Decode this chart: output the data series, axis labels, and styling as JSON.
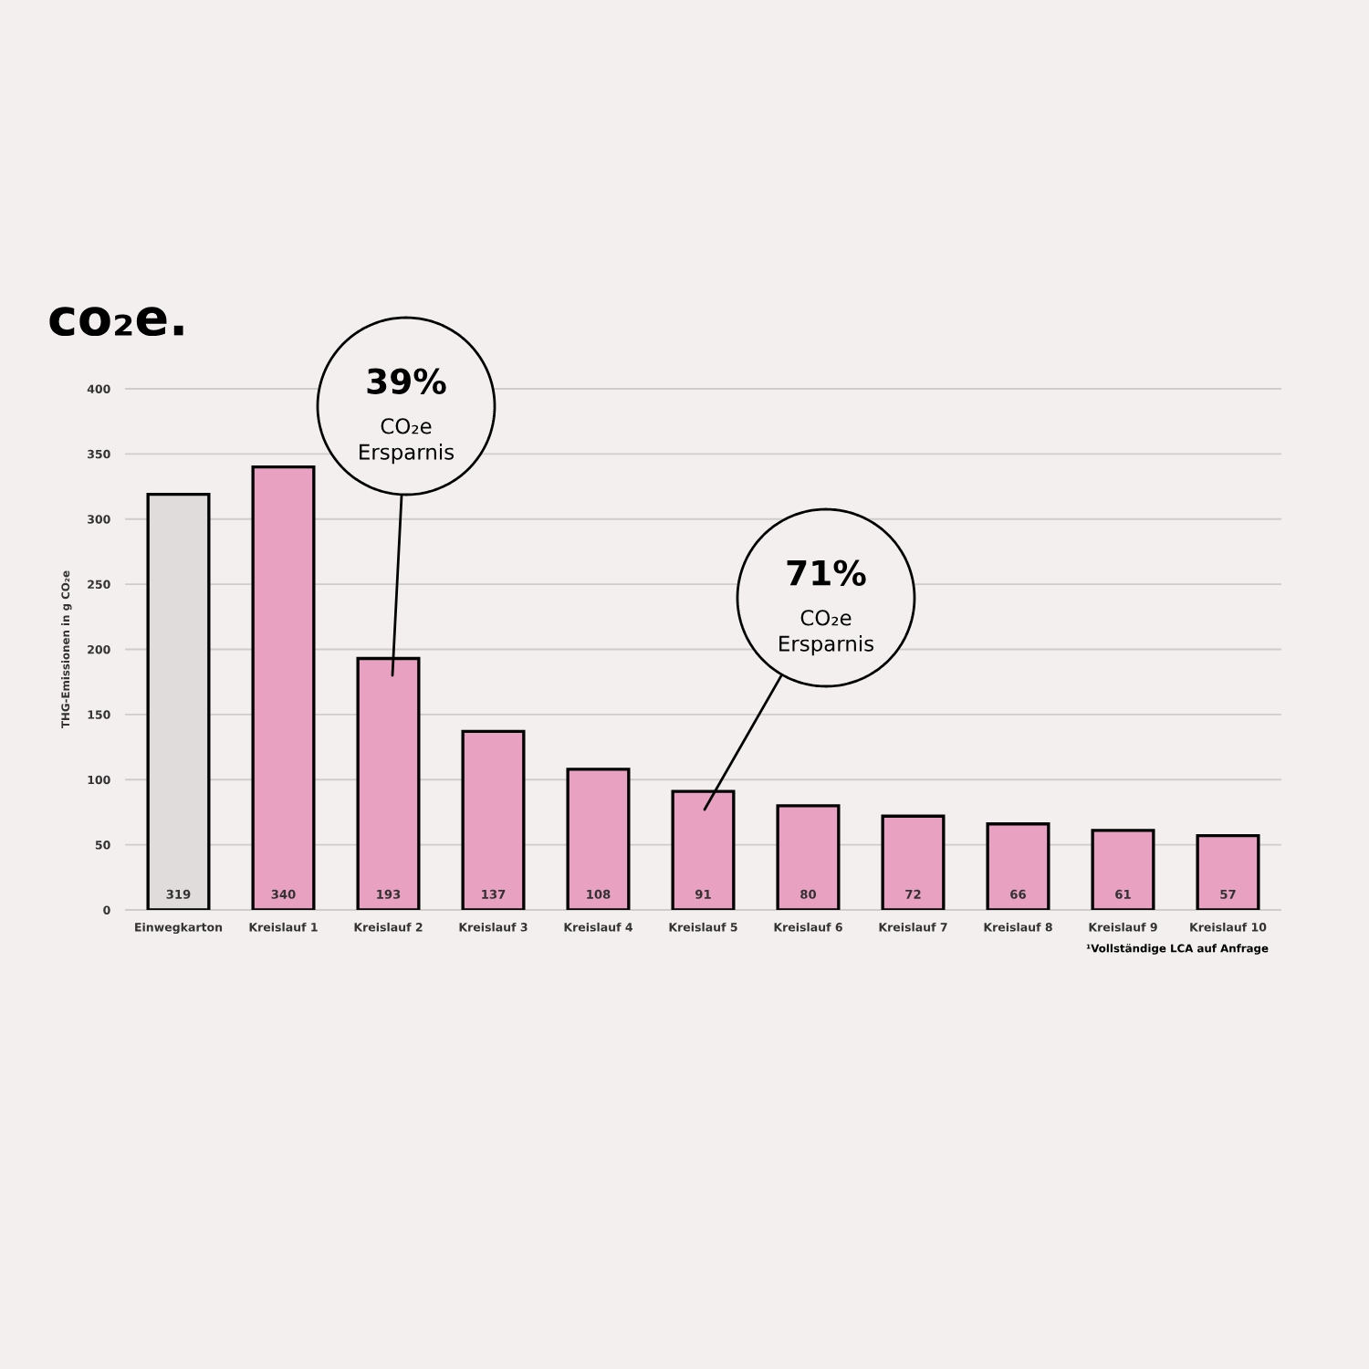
{
  "chart_data": {
    "type": "bar",
    "title": "co₂e.",
    "ylabel": "THG-Emissionen in g CO₂e",
    "categories": [
      "Einwegkarton",
      "Kreislauf 1",
      "Kreislauf 2",
      "Kreislauf 3",
      "Kreislauf 4",
      "Kreislauf 5",
      "Kreislauf 6",
      "Kreislauf 7",
      "Kreislauf 8",
      "Kreislauf 9",
      "Kreislauf 10"
    ],
    "values": [
      319,
      340,
      193,
      137,
      108,
      91,
      80,
      72,
      66,
      61,
      57
    ],
    "colors": [
      "#e0dcdb",
      "#e8a1c0",
      "#e8a1c0",
      "#e8a1c0",
      "#e8a1c0",
      "#e8a1c0",
      "#e8a1c0",
      "#e8a1c0",
      "#e8a1c0",
      "#e8a1c0",
      "#e8a1c0"
    ],
    "ylim": [
      0,
      400
    ],
    "yticks": [
      0,
      50,
      100,
      150,
      200,
      250,
      300,
      350,
      400
    ],
    "grid": "y",
    "data_labels": true,
    "annotations": [
      "39%",
      "CO₂e\nErsparnis",
      "71%",
      "CO₂e\nErsparnis",
      "¹Vollständige LCA auf Anfrage"
    ]
  }
}
